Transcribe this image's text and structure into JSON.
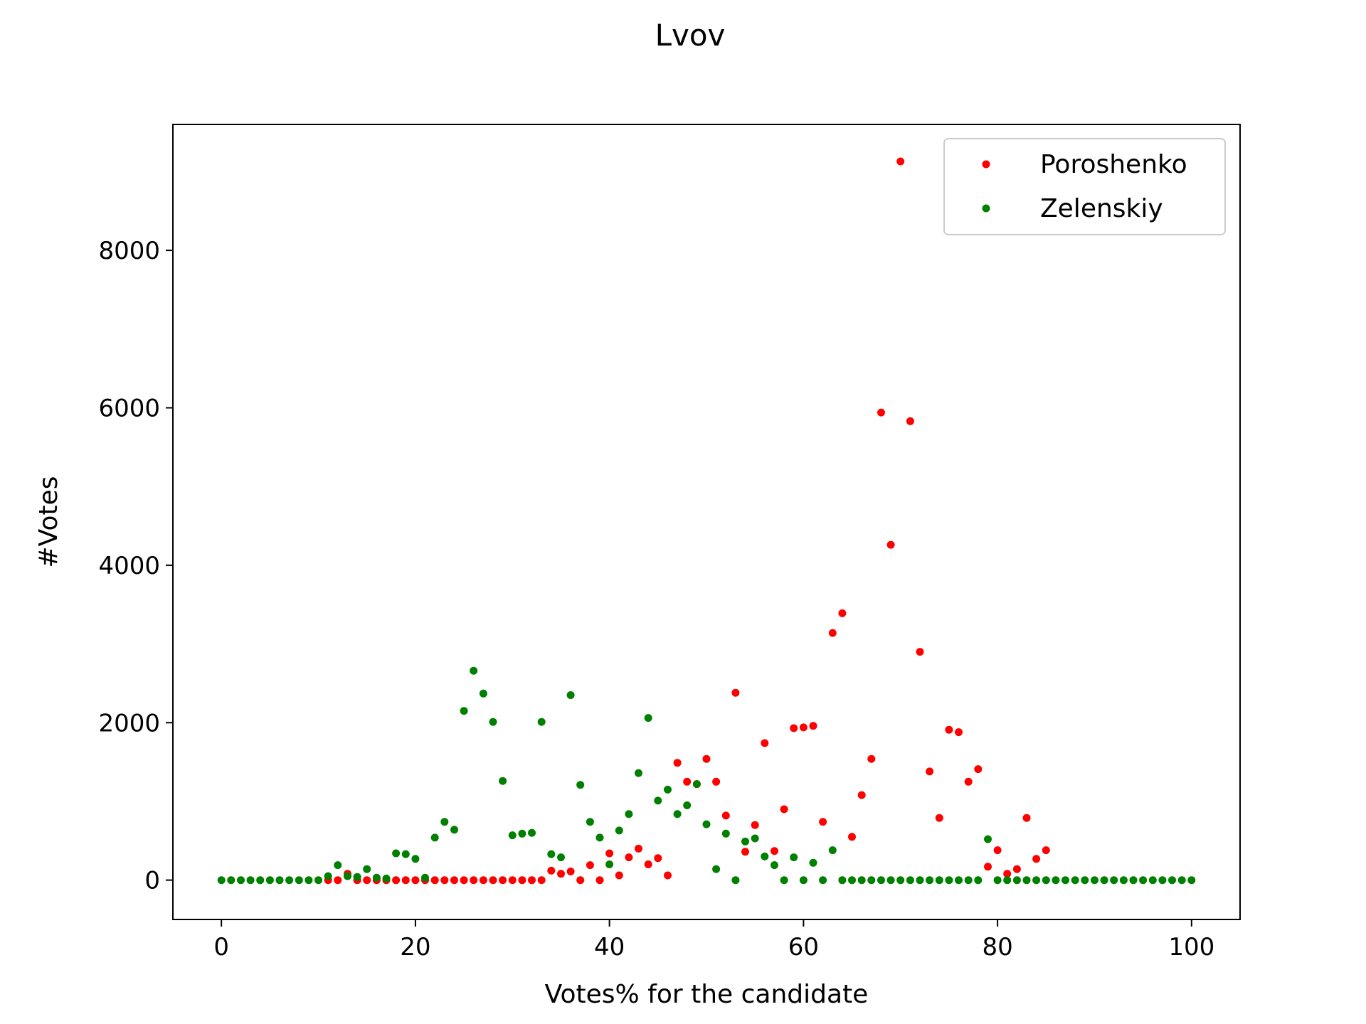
{
  "chart_data": {
    "type": "scatter",
    "title": "Lvov",
    "xlabel": "Votes% for the candidate",
    "ylabel": "#Votes",
    "xlim": [
      -5,
      105
    ],
    "ylim": [
      -500,
      9600
    ],
    "xticks": [
      0,
      20,
      40,
      60,
      80,
      100
    ],
    "yticks": [
      0,
      2000,
      4000,
      6000,
      8000
    ],
    "grid": false,
    "legend_position": "top-right",
    "series": [
      {
        "name": "Poroshenko",
        "color": "#ff0000",
        "x": [
          11,
          12,
          13,
          14,
          15,
          16,
          17,
          18,
          19,
          20,
          21,
          22,
          23,
          24,
          25,
          26,
          27,
          28,
          29,
          30,
          31,
          32,
          33,
          34,
          35,
          36,
          37,
          38,
          39,
          40,
          41,
          42,
          43,
          44,
          45,
          46,
          47,
          48,
          49,
          50,
          51,
          52,
          53,
          54,
          55,
          56,
          57,
          58,
          59,
          60,
          61,
          62,
          63,
          64,
          65,
          66,
          67,
          68,
          69,
          70,
          71,
          72,
          73,
          74,
          75,
          76,
          77,
          78,
          79,
          80,
          81,
          82,
          83,
          84,
          85
        ],
        "y": [
          0,
          0,
          80,
          0,
          0,
          0,
          0,
          0,
          0,
          0,
          0,
          0,
          0,
          0,
          0,
          0,
          0,
          0,
          0,
          0,
          0,
          0,
          0,
          120,
          80,
          110,
          0,
          190,
          0,
          340,
          60,
          290,
          400,
          200,
          280,
          60,
          1490,
          1250,
          1220,
          1540,
          1250,
          820,
          2380,
          360,
          700,
          1740,
          370,
          900,
          1930,
          1940,
          1960,
          740,
          3140,
          3390,
          550,
          1080,
          1540,
          5940,
          4260,
          9130,
          5830,
          2900,
          1380,
          790,
          1910,
          1880,
          1250,
          1410,
          170,
          380,
          80,
          140,
          790,
          270,
          380
        ]
      },
      {
        "name": "Zelenskiy",
        "color": "#008000",
        "x": [
          0,
          1,
          2,
          3,
          4,
          5,
          6,
          7,
          8,
          9,
          10,
          11,
          12,
          13,
          14,
          15,
          16,
          17,
          18,
          19,
          20,
          21,
          22,
          23,
          24,
          25,
          26,
          27,
          28,
          29,
          30,
          31,
          32,
          33,
          34,
          35,
          36,
          37,
          38,
          39,
          40,
          41,
          42,
          43,
          44,
          45,
          46,
          47,
          48,
          49,
          50,
          51,
          52,
          53,
          54,
          55,
          56,
          57,
          58,
          59,
          60,
          61,
          62,
          63,
          64,
          65,
          66,
          67,
          68,
          69,
          70,
          71,
          72,
          73,
          74,
          75,
          76,
          77,
          78,
          79,
          80,
          81,
          82,
          83,
          84,
          85,
          86,
          87,
          88,
          89,
          90,
          91,
          92,
          93,
          94,
          95,
          96,
          97,
          98,
          99,
          100
        ],
        "y": [
          0,
          0,
          0,
          0,
          0,
          0,
          0,
          0,
          0,
          0,
          0,
          50,
          190,
          50,
          40,
          140,
          30,
          20,
          340,
          330,
          270,
          30,
          540,
          740,
          640,
          2150,
          2660,
          2370,
          2010,
          1260,
          570,
          590,
          600,
          2010,
          330,
          290,
          2350,
          1210,
          740,
          540,
          200,
          630,
          840,
          1360,
          2060,
          1010,
          1150,
          840,
          950,
          1220,
          710,
          140,
          590,
          0,
          490,
          530,
          300,
          190,
          0,
          290,
          0,
          220,
          0,
          380,
          0,
          0,
          0,
          0,
          0,
          0,
          0,
          0,
          0,
          0,
          0,
          0,
          0,
          0,
          0,
          520,
          0,
          0,
          0,
          0,
          0,
          0,
          0,
          0,
          0,
          0,
          0,
          0,
          0,
          0,
          0,
          0,
          0,
          0,
          0,
          0,
          0
        ]
      }
    ]
  }
}
